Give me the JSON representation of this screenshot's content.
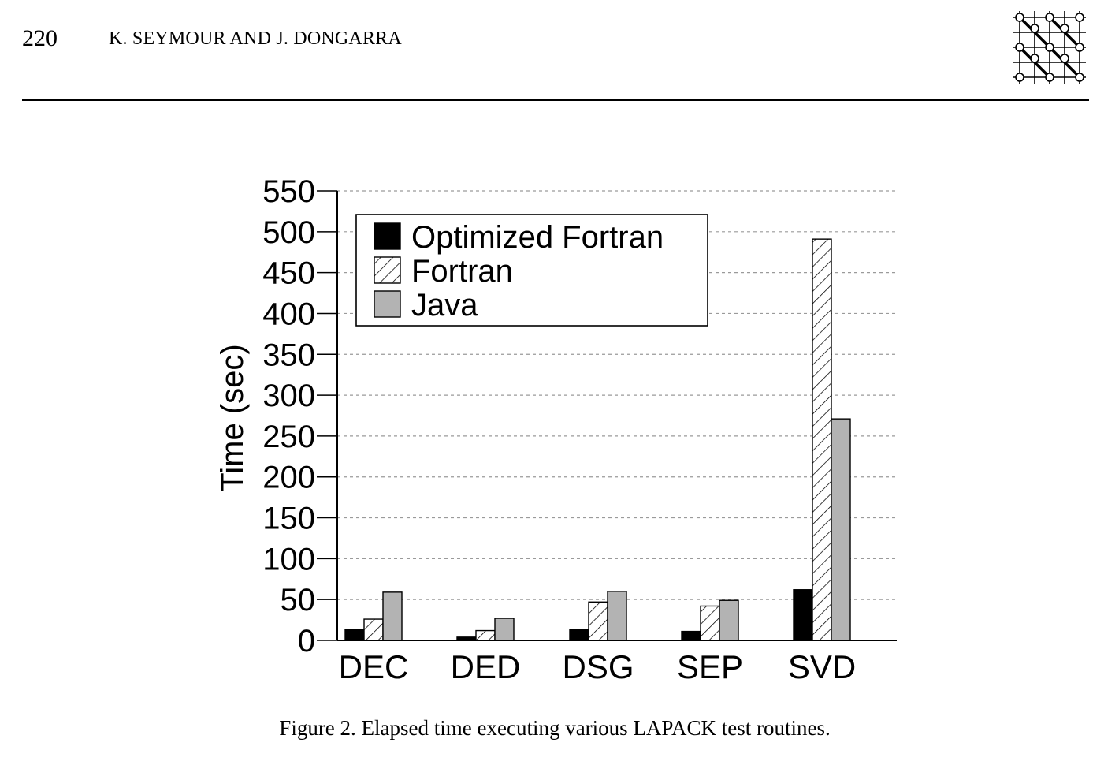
{
  "header": {
    "page_number": "220",
    "running_head": "K. SEYMOUR AND J. DONGARRA"
  },
  "figure": {
    "caption": "Figure 2. Elapsed time executing various LAPACK test routines."
  },
  "chart_data": {
    "type": "bar",
    "title": "",
    "xlabel": "",
    "ylabel": "Time (sec)",
    "ylim": [
      0,
      550
    ],
    "yticks": [
      0,
      50,
      100,
      150,
      200,
      250,
      300,
      350,
      400,
      450,
      500,
      550
    ],
    "grid": true,
    "legend_position": "top-left",
    "categories": [
      "DEC",
      "DED",
      "DSG",
      "SEP",
      "SVD"
    ],
    "series": [
      {
        "name": "Optimized Fortran",
        "fill": "solid",
        "color": "#000000",
        "values": [
          13,
          4,
          13,
          11,
          62
        ]
      },
      {
        "name": "Fortran",
        "fill": "hatched",
        "color": "#ffffff",
        "values": [
          26,
          12,
          47,
          42,
          491
        ]
      },
      {
        "name": "Java",
        "fill": "solid",
        "color": "#b3b3b3",
        "values": [
          59,
          27,
          60,
          49,
          271
        ]
      }
    ]
  }
}
